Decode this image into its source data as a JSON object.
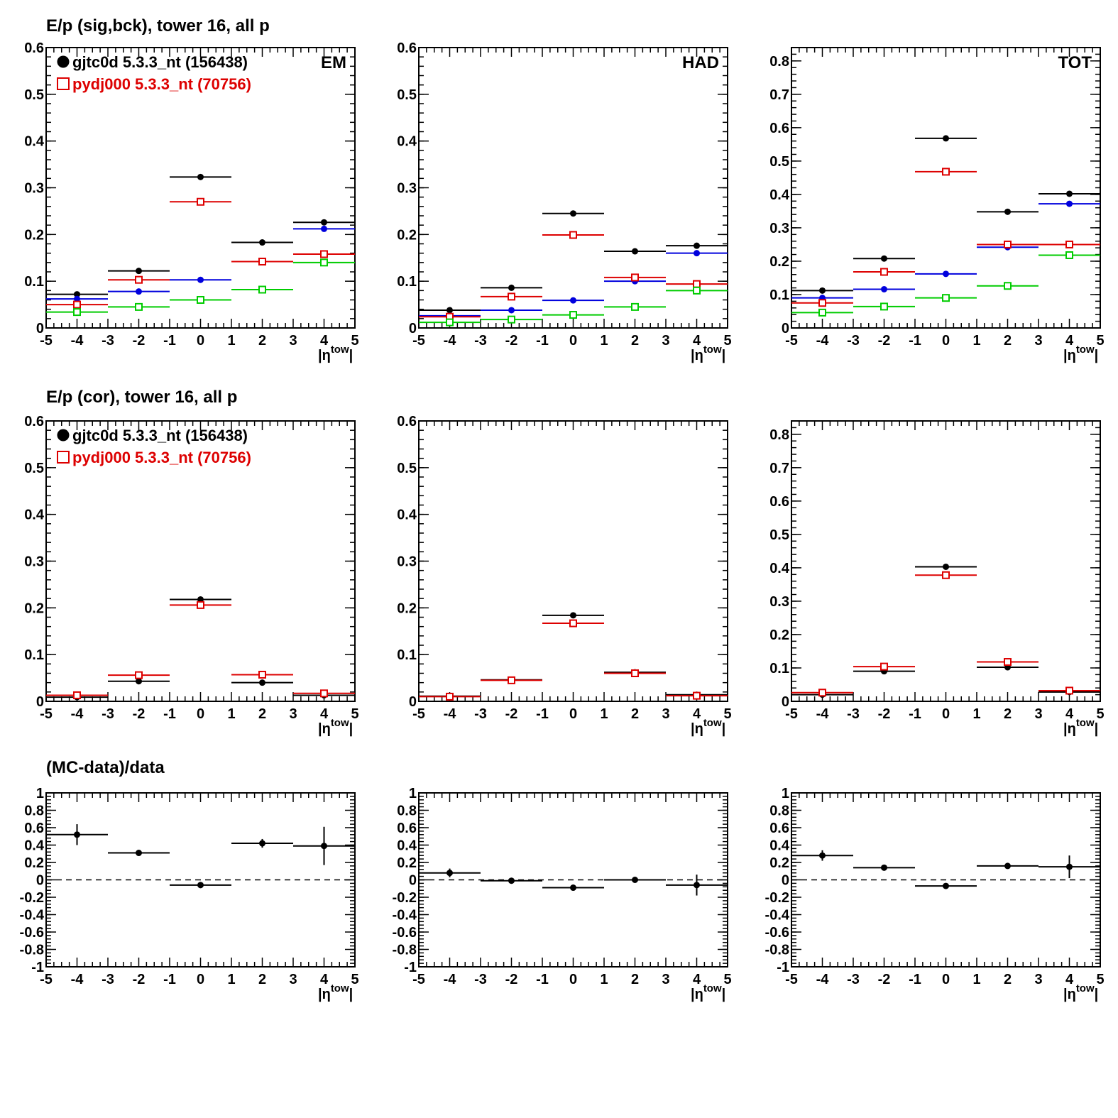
{
  "rows": [
    {
      "title": "E/p (sig,bck), tower 16, all p"
    },
    {
      "title": "E/p (cor), tower 16, all p"
    },
    {
      "title": "(MC-data)/data"
    }
  ],
  "legend": {
    "entries": [
      {
        "label": "gjtc0d 5.3.3_nt (156438)",
        "color": "#000000",
        "marker": "filled-circle"
      },
      {
        "label": "pydj000 5.3.3_nt (70756)",
        "color": "#dd0000",
        "marker": "open-square"
      }
    ]
  },
  "colors": {
    "data": "#000000",
    "mc": "#dd0000",
    "blue": "#0000dd",
    "green": "#00cc00"
  },
  "chart_data": [
    {
      "type": "scatter",
      "row": 0,
      "col": 0,
      "corner_label": "EM",
      "legend": true,
      "xlim": [
        -5,
        5
      ],
      "ylim": [
        0,
        0.6
      ],
      "yticks": [
        0,
        0.1,
        0.2,
        0.3,
        0.4,
        0.5,
        0.6
      ],
      "ytick_labels": [
        "0",
        "0.1",
        "0.2",
        "0.3",
        "0.4",
        "0.5",
        "0.6"
      ],
      "xlabel": "|η^tow|",
      "x": [
        -4,
        -2,
        0,
        2,
        4
      ],
      "series": [
        {
          "color": "#000000",
          "marker": "filled-circle",
          "values": [
            0.072,
            0.122,
            0.323,
            0.183,
            0.226
          ]
        },
        {
          "color": "#0000dd",
          "marker": "filled-circle",
          "values": [
            0.062,
            0.078,
            0.103,
            0.142,
            0.212
          ]
        },
        {
          "color": "#dd0000",
          "marker": "open-square",
          "values": [
            0.05,
            0.103,
            0.27,
            0.142,
            0.158
          ]
        },
        {
          "color": "#00cc00",
          "marker": "open-square",
          "values": [
            0.034,
            0.045,
            0.06,
            0.082,
            0.14
          ]
        }
      ]
    },
    {
      "type": "scatter",
      "row": 0,
      "col": 1,
      "corner_label": "HAD",
      "legend": false,
      "xlim": [
        -5,
        5
      ],
      "ylim": [
        0,
        0.6
      ],
      "yticks": [
        0,
        0.1,
        0.2,
        0.3,
        0.4,
        0.5,
        0.6
      ],
      "ytick_labels": [
        "0",
        "0.1",
        "0.2",
        "0.3",
        "0.4",
        "0.5",
        "0.6"
      ],
      "xlabel": "|η^tow|",
      "x": [
        -4,
        -2,
        0,
        2,
        4
      ],
      "series": [
        {
          "color": "#000000",
          "marker": "filled-circle",
          "values": [
            0.038,
            0.086,
            0.245,
            0.164,
            0.176
          ]
        },
        {
          "color": "#0000dd",
          "marker": "filled-circle",
          "values": [
            0.026,
            0.038,
            0.059,
            0.1,
            0.16
          ]
        },
        {
          "color": "#dd0000",
          "marker": "open-square",
          "values": [
            0.024,
            0.067,
            0.199,
            0.108,
            0.094
          ]
        },
        {
          "color": "#00cc00",
          "marker": "open-square",
          "values": [
            0.012,
            0.018,
            0.028,
            0.045,
            0.08
          ]
        }
      ]
    },
    {
      "type": "scatter",
      "row": 0,
      "col": 2,
      "corner_label": "TOT",
      "legend": false,
      "xlim": [
        -5,
        5
      ],
      "ylim": [
        0,
        0.84
      ],
      "yticks": [
        0,
        0.1,
        0.2,
        0.3,
        0.4,
        0.5,
        0.6,
        0.7,
        0.8
      ],
      "ytick_labels": [
        "0",
        "0.1",
        "0.2",
        "0.3",
        "0.4",
        "0.5",
        "0.6",
        "0.7",
        "0.8"
      ],
      "xlabel": "|η^tow|",
      "x": [
        -4,
        -2,
        0,
        2,
        4
      ],
      "series": [
        {
          "color": "#000000",
          "marker": "filled-circle",
          "values": [
            0.112,
            0.208,
            0.568,
            0.348,
            0.402
          ]
        },
        {
          "color": "#0000dd",
          "marker": "filled-circle",
          "values": [
            0.09,
            0.116,
            0.162,
            0.242,
            0.372
          ]
        },
        {
          "color": "#dd0000",
          "marker": "open-square",
          "values": [
            0.075,
            0.168,
            0.468,
            0.25,
            0.25
          ]
        },
        {
          "color": "#00cc00",
          "marker": "open-square",
          "values": [
            0.046,
            0.064,
            0.09,
            0.126,
            0.218
          ]
        }
      ]
    },
    {
      "type": "scatter",
      "row": 1,
      "col": 0,
      "corner_label": "",
      "legend": true,
      "xlim": [
        -5,
        5
      ],
      "ylim": [
        0,
        0.6
      ],
      "yticks": [
        0,
        0.1,
        0.2,
        0.3,
        0.4,
        0.5,
        0.6
      ],
      "ytick_labels": [
        "0",
        "0.1",
        "0.2",
        "0.3",
        "0.4",
        "0.5",
        "0.6"
      ],
      "xlabel": "|η^tow|",
      "x": [
        -4,
        -2,
        0,
        2,
        4
      ],
      "series": [
        {
          "color": "#000000",
          "marker": "filled-circle",
          "values": [
            0.009,
            0.043,
            0.218,
            0.04,
            0.013
          ]
        },
        {
          "color": "#dd0000",
          "marker": "open-square",
          "values": [
            0.013,
            0.056,
            0.206,
            0.057,
            0.017
          ]
        }
      ]
    },
    {
      "type": "scatter",
      "row": 1,
      "col": 1,
      "corner_label": "",
      "legend": false,
      "xlim": [
        -5,
        5
      ],
      "ylim": [
        0,
        0.6
      ],
      "yticks": [
        0,
        0.1,
        0.2,
        0.3,
        0.4,
        0.5,
        0.6
      ],
      "ytick_labels": [
        "0",
        "0.1",
        "0.2",
        "0.3",
        "0.4",
        "0.5",
        "0.6"
      ],
      "xlabel": "|η^tow|",
      "x": [
        -4,
        -2,
        0,
        2,
        4
      ],
      "series": [
        {
          "color": "#000000",
          "marker": "filled-circle",
          "values": [
            0.011,
            0.046,
            0.184,
            0.062,
            0.014
          ]
        },
        {
          "color": "#dd0000",
          "marker": "open-square",
          "values": [
            0.01,
            0.045,
            0.167,
            0.06,
            0.012
          ]
        }
      ]
    },
    {
      "type": "scatter",
      "row": 1,
      "col": 2,
      "corner_label": "",
      "legend": false,
      "xlim": [
        -5,
        5
      ],
      "ylim": [
        0,
        0.84
      ],
      "yticks": [
        0,
        0.1,
        0.2,
        0.3,
        0.4,
        0.5,
        0.6,
        0.7,
        0.8
      ],
      "ytick_labels": [
        "0",
        "0.1",
        "0.2",
        "0.3",
        "0.4",
        "0.5",
        "0.6",
        "0.7",
        "0.8"
      ],
      "xlabel": "|η^tow|",
      "x": [
        -4,
        -2,
        0,
        2,
        4
      ],
      "series": [
        {
          "color": "#000000",
          "marker": "filled-circle",
          "values": [
            0.02,
            0.09,
            0.403,
            0.102,
            0.028
          ]
        },
        {
          "color": "#dd0000",
          "marker": "open-square",
          "values": [
            0.026,
            0.104,
            0.378,
            0.118,
            0.032
          ]
        }
      ]
    },
    {
      "type": "scatter",
      "row": 2,
      "col": 0,
      "corner_label": "",
      "legend": false,
      "xlim": [
        -5,
        5
      ],
      "ylim": [
        -1,
        1
      ],
      "yticks": [
        -1,
        -0.8,
        -0.6,
        -0.4,
        -0.2,
        0,
        0.2,
        0.4,
        0.6,
        0.8,
        1
      ],
      "ytick_labels": [
        "-1",
        "-0.8",
        "-0.6",
        "-0.4",
        "-0.2",
        "0",
        "0.2",
        "0.4",
        "0.6",
        "0.8",
        "1"
      ],
      "xlabel": "|η^tow|",
      "zero_line": true,
      "x": [
        -4,
        -2,
        0,
        2,
        4
      ],
      "series": [
        {
          "color": "#000000",
          "marker": "filled-circle",
          "values": [
            0.52,
            0.31,
            -0.06,
            0.42,
            0.39
          ],
          "errors": [
            0.12,
            0.02,
            0.02,
            0.05,
            0.22
          ]
        }
      ]
    },
    {
      "type": "scatter",
      "row": 2,
      "col": 1,
      "corner_label": "",
      "legend": false,
      "xlim": [
        -5,
        5
      ],
      "ylim": [
        -1,
        1
      ],
      "yticks": [
        -1,
        -0.8,
        -0.6,
        -0.4,
        -0.2,
        0,
        0.2,
        0.4,
        0.6,
        0.8,
        1
      ],
      "ytick_labels": [
        "-1",
        "-0.8",
        "-0.6",
        "-0.4",
        "-0.2",
        "0",
        "0.2",
        "0.4",
        "0.6",
        "0.8",
        "1"
      ],
      "xlabel": "|η^tow|",
      "zero_line": true,
      "x": [
        -4,
        -2,
        0,
        2,
        4
      ],
      "series": [
        {
          "color": "#000000",
          "marker": "filled-circle",
          "values": [
            0.08,
            -0.01,
            -0.09,
            0.0,
            -0.06
          ],
          "errors": [
            0.05,
            0.01,
            0.01,
            0.01,
            0.12
          ]
        }
      ]
    },
    {
      "type": "scatter",
      "row": 2,
      "col": 2,
      "corner_label": "",
      "legend": false,
      "xlim": [
        -5,
        5
      ],
      "ylim": [
        -1,
        1
      ],
      "yticks": [
        -1,
        -0.8,
        -0.6,
        -0.4,
        -0.2,
        0,
        0.2,
        0.4,
        0.6,
        0.8,
        1
      ],
      "ytick_labels": [
        "-1",
        "-0.8",
        "-0.6",
        "-0.4",
        "-0.2",
        "0",
        "0.2",
        "0.4",
        "0.6",
        "0.8",
        "1"
      ],
      "xlabel": "|η^tow|",
      "zero_line": true,
      "x": [
        -4,
        -2,
        0,
        2,
        4
      ],
      "series": [
        {
          "color": "#000000",
          "marker": "filled-circle",
          "values": [
            0.28,
            0.14,
            -0.07,
            0.16,
            0.15
          ],
          "errors": [
            0.06,
            0.01,
            0.01,
            0.02,
            0.13
          ]
        }
      ]
    }
  ]
}
